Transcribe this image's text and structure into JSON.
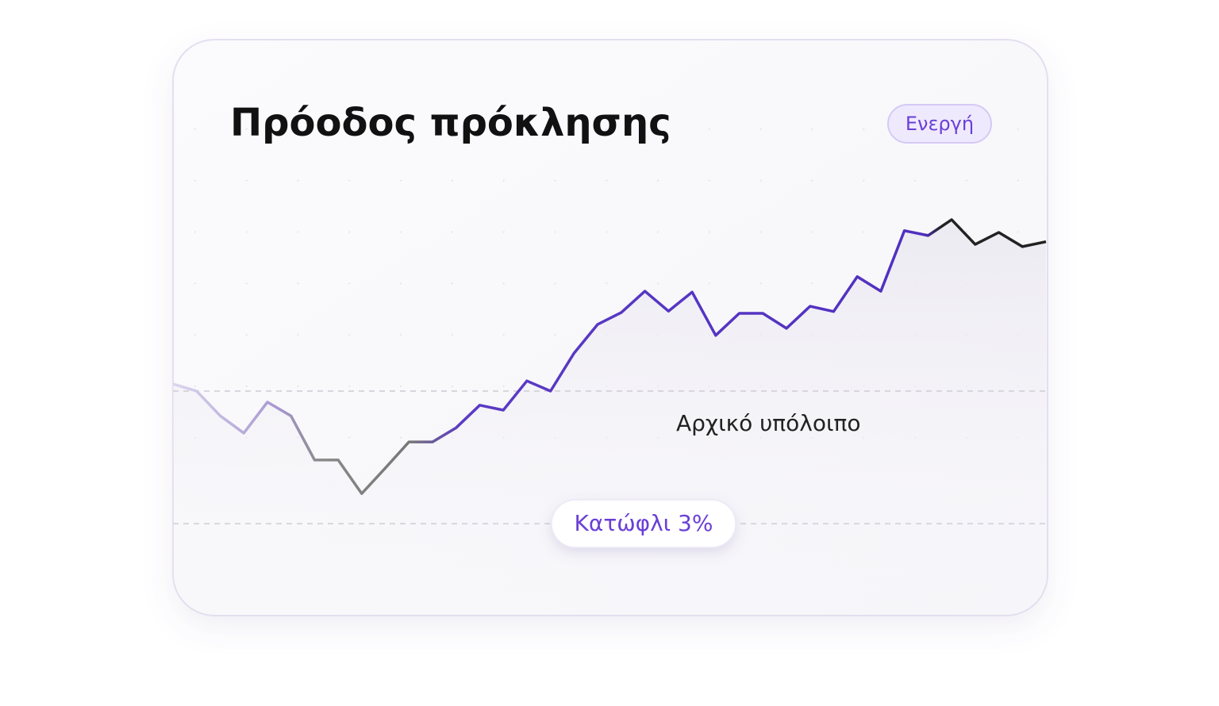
{
  "title": "Πρόοδος πρόκλησης",
  "status": "Ενεργή",
  "chart_data": {
    "type": "line",
    "values": [
      0.16,
      0,
      -0.56,
      -0.95,
      -0.25,
      -0.56,
      -1.56,
      -1.56,
      -2.32,
      -1.74,
      -1.15,
      -1.15,
      -0.83,
      -0.32,
      -0.43,
      0.23,
      0,
      0.86,
      1.51,
      1.78,
      2.26,
      1.81,
      2.24,
      1.26,
      1.76,
      1.76,
      1.42,
      1.92,
      1.8,
      2.59,
      2.26,
      3.63,
      3.52,
      3.88,
      3.32,
      3.59,
      3.27,
      3.38
    ],
    "ylim": [
      -5,
      5
    ],
    "reference_lines": [
      {
        "value": 0,
        "label": "Αρχικό υπόλοιπο"
      },
      {
        "value": -3,
        "label": "Κατώφλι 3%"
      }
    ]
  }
}
